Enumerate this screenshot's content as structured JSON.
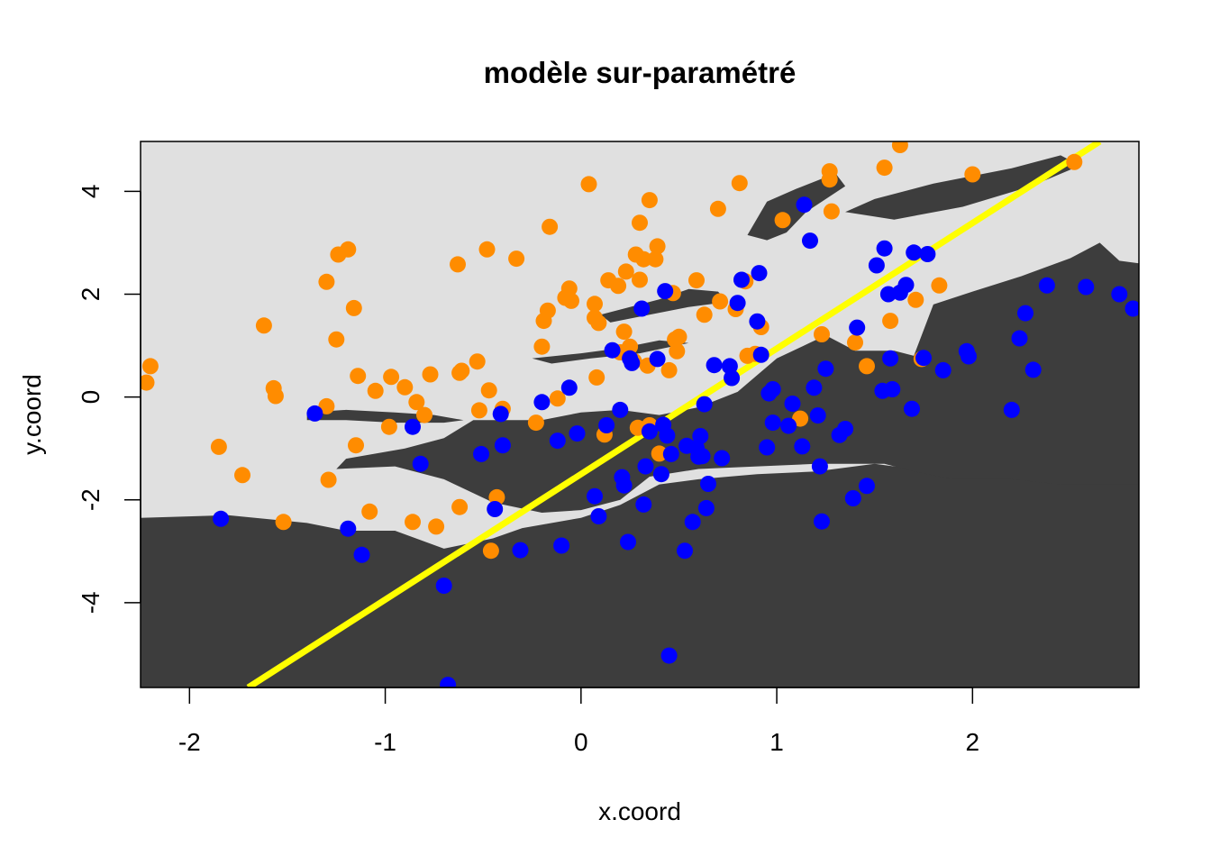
{
  "chart_data": {
    "type": "scatter",
    "title": "modèle sur-paramétré",
    "xlabel": "x.coord",
    "ylabel": "y.coord",
    "xlim": [
      -2.25,
      2.85
    ],
    "ylim": [
      -5.65,
      4.97
    ],
    "x_ticks": [
      -2,
      -1,
      0,
      1,
      2
    ],
    "y_ticks": [
      -4,
      -2,
      0,
      2,
      4
    ],
    "colors": {
      "orange_points": "#ff8c00",
      "blue_points": "#0000ff",
      "decision_line": "#ffff00",
      "region_light": "#e0e0e0",
      "region_dark": "#3d3d3d"
    },
    "background_regions": {
      "light": "#e0e0e0",
      "dark": "#3d3d3d",
      "dark_polygons": [
        [
          [
            -2.25,
            -2.35
          ],
          [
            -1.8,
            -2.3
          ],
          [
            -1.4,
            -2.45
          ],
          [
            -1.2,
            -2.6
          ],
          [
            -0.95,
            -2.6
          ],
          [
            -0.7,
            -2.95
          ],
          [
            -0.45,
            -2.75
          ],
          [
            -0.3,
            -2.55
          ],
          [
            0.0,
            -2.35
          ],
          [
            0.2,
            -2.1
          ],
          [
            0.4,
            -1.7
          ],
          [
            0.6,
            -1.6
          ],
          [
            0.9,
            -1.5
          ],
          [
            1.2,
            -1.45
          ],
          [
            1.5,
            -1.3
          ],
          [
            1.8,
            -1.45
          ],
          [
            2.1,
            -1.45
          ],
          [
            2.4,
            -1.55
          ],
          [
            2.85,
            -1.55
          ],
          [
            2.85,
            -5.65
          ],
          [
            -2.25,
            -5.65
          ]
        ],
        [
          [
            -0.55,
            -0.45
          ],
          [
            -0.2,
            -0.45
          ],
          [
            0.0,
            -0.3
          ],
          [
            0.2,
            -0.25
          ],
          [
            0.4,
            -0.35
          ],
          [
            0.6,
            -0.2
          ],
          [
            0.8,
            0.1
          ],
          [
            1.0,
            0.75
          ],
          [
            1.25,
            1.2
          ],
          [
            1.4,
            0.9
          ],
          [
            1.6,
            0.9
          ],
          [
            1.7,
            0.8
          ],
          [
            1.8,
            1.8
          ],
          [
            2.0,
            2.05
          ],
          [
            2.25,
            2.35
          ],
          [
            2.5,
            2.7
          ],
          [
            2.65,
            3.0
          ],
          [
            2.75,
            2.65
          ],
          [
            2.85,
            2.6
          ],
          [
            2.85,
            -1.7
          ],
          [
            2.45,
            -1.7
          ],
          [
            2.2,
            -1.6
          ],
          [
            1.9,
            -1.6
          ],
          [
            1.7,
            -1.45
          ],
          [
            1.55,
            -1.3
          ],
          [
            1.2,
            -1.3
          ],
          [
            0.9,
            -1.35
          ],
          [
            0.6,
            -1.4
          ],
          [
            0.35,
            -1.55
          ],
          [
            0.2,
            -2.0
          ],
          [
            0.0,
            -2.2
          ],
          [
            -0.2,
            -2.25
          ],
          [
            -0.45,
            -2.05
          ],
          [
            -0.7,
            -1.6
          ],
          [
            -0.95,
            -1.35
          ],
          [
            -1.25,
            -1.4
          ],
          [
            -1.2,
            -1.2
          ],
          [
            -0.9,
            -1.0
          ],
          [
            -0.7,
            -0.8
          ]
        ],
        [
          [
            -1.4,
            -0.3
          ],
          [
            -1.2,
            -0.25
          ],
          [
            -0.95,
            -0.3
          ],
          [
            -0.75,
            -0.35
          ],
          [
            -0.6,
            -0.45
          ],
          [
            -0.7,
            -0.5
          ],
          [
            -0.95,
            -0.5
          ],
          [
            -1.2,
            -0.45
          ],
          [
            -1.4,
            -0.45
          ]
        ],
        [
          [
            0.1,
            1.6
          ],
          [
            0.4,
            1.9
          ],
          [
            0.55,
            2.1
          ],
          [
            0.7,
            2.05
          ],
          [
            0.75,
            1.85
          ],
          [
            0.55,
            1.75
          ],
          [
            0.35,
            1.6
          ],
          [
            0.15,
            1.45
          ]
        ],
        [
          [
            -0.25,
            0.75
          ],
          [
            0.0,
            0.85
          ],
          [
            0.2,
            0.95
          ],
          [
            0.4,
            1.1
          ],
          [
            0.55,
            1.05
          ],
          [
            0.3,
            0.85
          ],
          [
            0.05,
            0.75
          ],
          [
            -0.15,
            0.65
          ]
        ],
        [
          [
            0.85,
            3.15
          ],
          [
            0.95,
            3.8
          ],
          [
            1.1,
            4.05
          ],
          [
            1.3,
            4.35
          ],
          [
            1.35,
            4.1
          ],
          [
            1.15,
            3.6
          ],
          [
            1.05,
            3.2
          ],
          [
            0.95,
            3.05
          ]
        ],
        [
          [
            1.35,
            3.6
          ],
          [
            1.5,
            3.85
          ],
          [
            1.8,
            4.15
          ],
          [
            2.2,
            4.45
          ],
          [
            2.45,
            4.7
          ],
          [
            2.55,
            4.5
          ],
          [
            2.3,
            4.1
          ],
          [
            1.95,
            3.7
          ],
          [
            1.6,
            3.45
          ]
        ]
      ]
    },
    "decision_line": {
      "color": "#ffff00",
      "points": [
        [
          -1.7,
          -5.65
        ],
        [
          2.65,
          4.97
        ]
      ]
    },
    "series": [
      {
        "color": "#ff8c00",
        "x": [
          -2.22,
          -2.2,
          -1.85,
          -1.73,
          -1.62,
          -1.57,
          -1.56,
          -1.52,
          -1.3,
          -1.3,
          -1.29,
          -1.25,
          -1.24,
          -1.19,
          -1.16,
          -1.15,
          -1.14,
          -1.08,
          -1.05,
          -0.98,
          -0.97,
          -0.9,
          -0.86,
          -0.84,
          -0.8,
          -0.77,
          -0.74,
          -0.63,
          -0.62,
          -0.61,
          -0.62,
          -0.53,
          -0.52,
          -0.48,
          -0.47,
          -0.46,
          -0.43,
          -0.4,
          -0.33,
          -0.23,
          -0.19,
          -0.2,
          -0.17,
          -0.16,
          -0.12,
          -0.08,
          -0.06,
          -0.05,
          0.04,
          0.07,
          0.07,
          0.08,
          0.09,
          0.12,
          0.14,
          0.19,
          0.2,
          0.22,
          0.23,
          0.25,
          0.27,
          0.28,
          0.29,
          0.3,
          0.3,
          0.32,
          0.34,
          0.35,
          0.38,
          0.39,
          0.4,
          0.45,
          0.47,
          0.48,
          0.49,
          0.63,
          0.59,
          0.7,
          0.71,
          0.79,
          0.81,
          0.84,
          0.89,
          0.92,
          1.03,
          1.12,
          1.23,
          1.27,
          1.27,
          1.28,
          1.4,
          1.46,
          1.55,
          1.58,
          1.63,
          1.71,
          1.74,
          1.83,
          2.0,
          2.52,
          0.5,
          0.35,
          0.85
        ],
        "y": [
          0.28,
          0.6,
          -0.97,
          -1.52,
          1.39,
          0.17,
          0.02,
          -2.43,
          2.24,
          -0.18,
          -1.61,
          1.12,
          2.77,
          2.87,
          1.73,
          -0.94,
          0.41,
          -2.23,
          0.12,
          -0.58,
          0.39,
          0.19,
          -2.43,
          -0.1,
          -0.35,
          0.44,
          -2.52,
          2.58,
          0.47,
          0.51,
          -2.14,
          0.69,
          -0.26,
          2.87,
          0.13,
          -2.99,
          -1.95,
          -0.23,
          2.69,
          -0.5,
          1.48,
          0.98,
          1.68,
          3.31,
          -0.03,
          1.93,
          2.11,
          1.87,
          4.14,
          1.81,
          1.54,
          0.38,
          1.44,
          -0.73,
          2.27,
          2.16,
          0.87,
          1.27,
          2.44,
          0.98,
          0.7,
          2.77,
          -0.6,
          3.39,
          2.28,
          2.68,
          0.61,
          3.83,
          2.68,
          2.93,
          -1.1,
          0.52,
          2.02,
          1.12,
          0.89,
          1.6,
          2.27,
          3.66,
          1.86,
          1.71,
          4.16,
          2.25,
          0.84,
          1.36,
          3.44,
          -0.42,
          1.22,
          4.23,
          4.39,
          3.61,
          1.06,
          0.6,
          4.46,
          1.48,
          4.9,
          1.89,
          0.74,
          2.17,
          4.33,
          4.57,
          1.17,
          -0.55,
          0.8
        ]
      },
      {
        "color": "#0000ff",
        "x": [
          -1.84,
          -1.36,
          -1.19,
          -1.12,
          -0.86,
          -0.82,
          -0.7,
          -0.68,
          -0.51,
          -0.44,
          -0.41,
          -0.4,
          -0.31,
          -0.2,
          -0.12,
          -0.1,
          -0.06,
          -0.02,
          0.07,
          0.09,
          0.13,
          0.16,
          0.2,
          0.21,
          0.22,
          0.24,
          0.25,
          0.26,
          0.31,
          0.32,
          0.33,
          0.35,
          0.39,
          0.41,
          0.43,
          0.44,
          0.46,
          0.53,
          0.57,
          0.59,
          0.6,
          0.61,
          0.63,
          0.64,
          0.65,
          0.72,
          0.76,
          0.77,
          0.8,
          0.82,
          0.9,
          0.91,
          0.92,
          0.96,
          0.98,
          1.06,
          1.14,
          1.17,
          1.19,
          1.21,
          1.22,
          1.23,
          1.25,
          1.32,
          1.35,
          1.39,
          1.41,
          1.51,
          1.55,
          1.58,
          1.59,
          1.63,
          1.66,
          1.69,
          1.7,
          1.77,
          1.85,
          1.97,
          2.2,
          2.24,
          2.27,
          2.31,
          2.38,
          2.58,
          2.75,
          2.82,
          1.98,
          1.13,
          0.95,
          1.08,
          0.98,
          1.75,
          1.54,
          1.57,
          0.54,
          0.42,
          0.62,
          0.45,
          1.46,
          0.68
        ],
        "y": [
          -2.37,
          -0.32,
          -2.56,
          -3.07,
          -0.58,
          -1.3,
          -3.67,
          -5.6,
          -1.11,
          -2.18,
          -0.33,
          -0.94,
          -2.98,
          -0.1,
          -0.85,
          -2.89,
          0.18,
          -0.71,
          -1.93,
          -2.32,
          -0.55,
          0.91,
          -0.25,
          -1.56,
          -1.72,
          -2.82,
          0.75,
          0.66,
          1.72,
          -2.09,
          -1.35,
          -0.67,
          0.74,
          -1.5,
          2.06,
          -0.75,
          -1.11,
          -2.99,
          -2.43,
          -0.99,
          -1.16,
          -0.76,
          -0.14,
          -2.16,
          -1.69,
          -1.19,
          0.6,
          0.37,
          1.83,
          2.28,
          1.47,
          2.41,
          0.82,
          0.07,
          0.15,
          -0.56,
          3.74,
          3.04,
          0.18,
          -0.36,
          -1.35,
          -2.42,
          0.55,
          -0.74,
          -0.62,
          -1.97,
          1.35,
          2.56,
          2.89,
          0.75,
          0.15,
          2.03,
          2.18,
          -0.23,
          2.81,
          2.78,
          0.52,
          0.89,
          -0.25,
          1.14,
          1.63,
          0.53,
          2.17,
          2.14,
          2.0,
          1.72,
          0.79,
          -0.96,
          -0.98,
          -0.13,
          -0.5,
          0.76,
          0.12,
          2.0,
          -0.95,
          -0.54,
          -1.15,
          -5.03,
          -1.73,
          0.62
        ]
      }
    ]
  }
}
